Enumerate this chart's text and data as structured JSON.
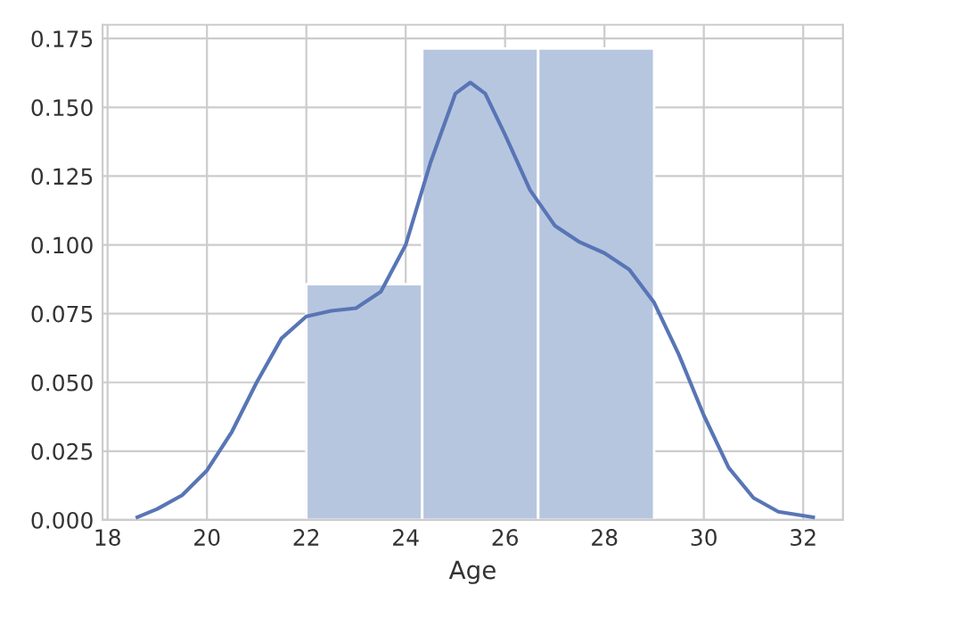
{
  "chart_data": {
    "type": "histogram",
    "xlabel": "Age",
    "bins": [
      22,
      24.333,
      26.667,
      29
    ],
    "values": [
      0.0857,
      0.1714,
      0.1714
    ],
    "color": "#b7c6df",
    "series": [
      {
        "type": "line",
        "color": "#5875b5",
        "x": [
          18.6,
          19,
          19.5,
          20,
          20.5,
          21,
          21.5,
          22,
          22.5,
          23,
          23.5,
          24,
          24.5,
          25,
          25.3,
          25.6,
          26,
          26.5,
          27,
          27.5,
          28,
          28.5,
          29,
          29.5,
          30,
          30.5,
          31,
          31.5,
          32.2
        ],
        "values": [
          0.001,
          0.004,
          0.009,
          0.018,
          0.032,
          0.05,
          0.066,
          0.074,
          0.076,
          0.077,
          0.083,
          0.1,
          0.13,
          0.155,
          0.159,
          0.155,
          0.14,
          0.12,
          0.107,
          0.101,
          0.097,
          0.091,
          0.079,
          0.06,
          0.038,
          0.019,
          0.008,
          0.003,
          0.001
        ]
      }
    ],
    "xlim": [
      17.9,
      32.8
    ],
    "ylim": [
      0,
      0.18
    ],
    "xticks": [
      18,
      20,
      22,
      24,
      26,
      28,
      30,
      32
    ],
    "yticks": [
      {
        "value": 0,
        "label": "0.000"
      },
      {
        "value": 0.025,
        "label": "0.025"
      },
      {
        "value": 0.05,
        "label": "0.050"
      },
      {
        "value": 0.075,
        "label": "0.075"
      },
      {
        "value": 0.1,
        "label": "0.100"
      },
      {
        "value": 0.125,
        "label": "0.125"
      },
      {
        "value": 0.15,
        "label": "0.150"
      },
      {
        "value": 0.175,
        "label": "0.175"
      }
    ],
    "grid": true
  }
}
